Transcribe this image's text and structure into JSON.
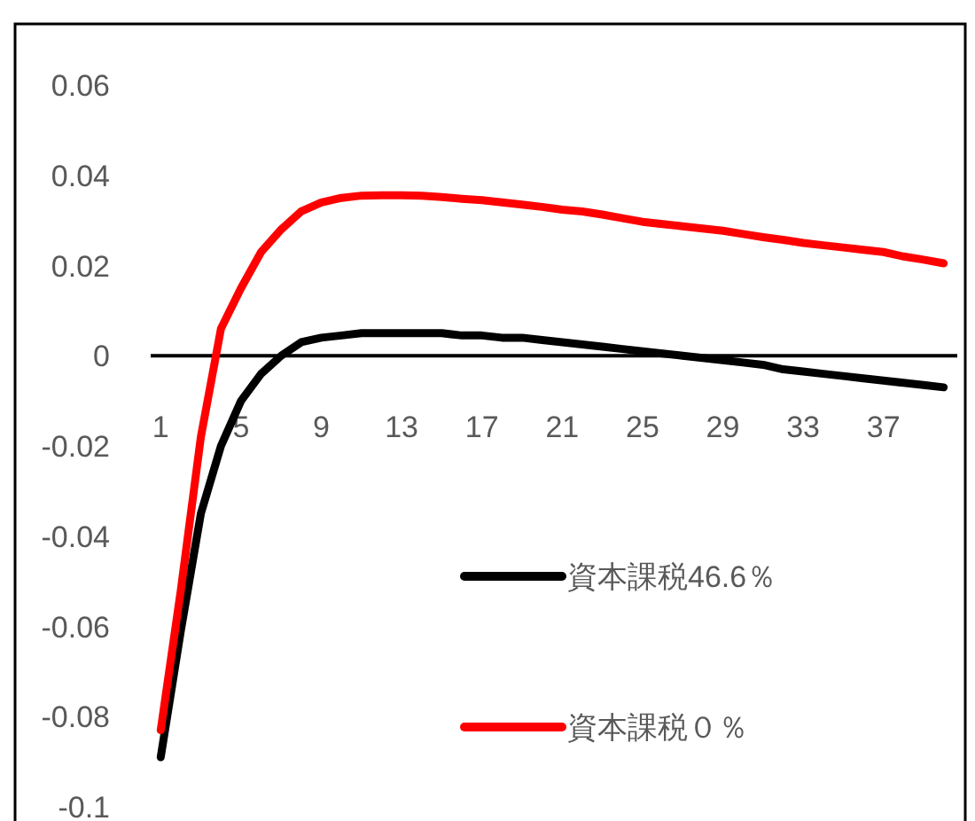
{
  "chart_data": {
    "type": "line",
    "categories": [
      "1",
      null,
      null,
      null,
      "5",
      null,
      null,
      null,
      "9",
      null,
      null,
      null,
      "13",
      null,
      null,
      null,
      "17",
      null,
      null,
      null,
      "21",
      null,
      null,
      null,
      "25",
      null,
      null,
      null,
      "29",
      null,
      null,
      null,
      "33",
      null,
      null,
      null,
      "37",
      null,
      null,
      null
    ],
    "series": [
      {
        "name": "資本課税46.6％",
        "color": "#000000",
        "values": [
          -0.089,
          -0.061,
          -0.035,
          -0.02,
          -0.01,
          -0.004,
          0.0,
          0.003,
          0.004,
          0.0045,
          0.005,
          0.005,
          0.005,
          0.005,
          0.005,
          0.0045,
          0.0045,
          0.004,
          0.004,
          0.0035,
          0.003,
          0.0025,
          0.002,
          0.0015,
          0.001,
          0.0005,
          0.0,
          -0.0005,
          -0.001,
          -0.0015,
          -0.002,
          -0.003,
          -0.0035,
          -0.004,
          -0.0045,
          -0.005,
          -0.0055,
          -0.006,
          -0.0065,
          -0.007
        ]
      },
      {
        "name": "資本課税０％",
        "color": "#ff0000",
        "values": [
          -0.083,
          -0.052,
          -0.018,
          0.006,
          0.015,
          0.023,
          0.028,
          0.032,
          0.034,
          0.035,
          0.0355,
          0.0356,
          0.0356,
          0.0355,
          0.0352,
          0.0348,
          0.0345,
          0.034,
          0.0335,
          0.033,
          0.0324,
          0.032,
          0.0313,
          0.0305,
          0.0297,
          0.0292,
          0.0287,
          0.0282,
          0.0277,
          0.027,
          0.0263,
          0.0257,
          0.025,
          0.0245,
          0.024,
          0.0235,
          0.023,
          0.022,
          0.0213,
          0.0205
        ]
      }
    ],
    "ylim": [
      -0.1,
      0.06
    ],
    "yticks": [
      0.06,
      0.04,
      0.02,
      0,
      -0.02,
      -0.04,
      -0.06,
      -0.08,
      -0.1
    ],
    "legend": "bottom right"
  }
}
